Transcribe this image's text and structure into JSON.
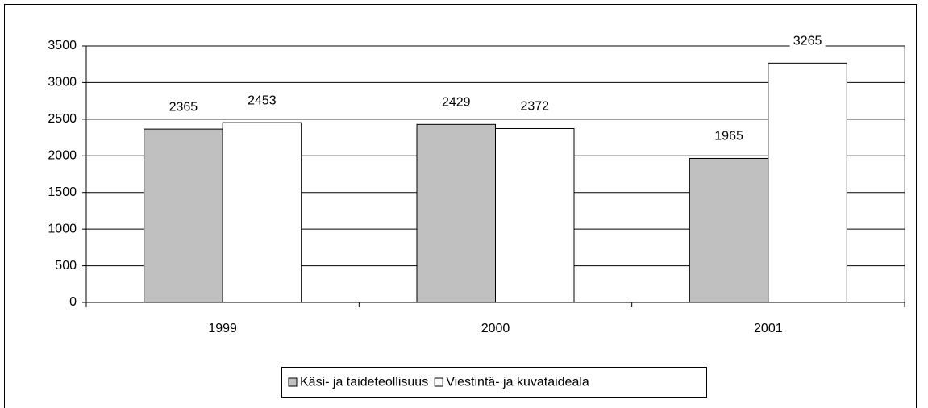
{
  "chart_data": {
    "type": "bar",
    "categories": [
      "1999",
      "2000",
      "2001"
    ],
    "series": [
      {
        "name": "Käsi- ja taideteollisuus",
        "color": "#c0c0c0",
        "values": [
          2365,
          2429,
          1965
        ]
      },
      {
        "name": "Viestintä- ja kuvataideala",
        "color": "#ffffff",
        "values": [
          2453,
          2372,
          3265
        ]
      }
    ],
    "ylim": [
      0,
      3500
    ],
    "yticks": [
      0,
      500,
      1000,
      1500,
      2000,
      2500,
      3000,
      3500
    ],
    "grid": true,
    "legend": "bottom"
  }
}
